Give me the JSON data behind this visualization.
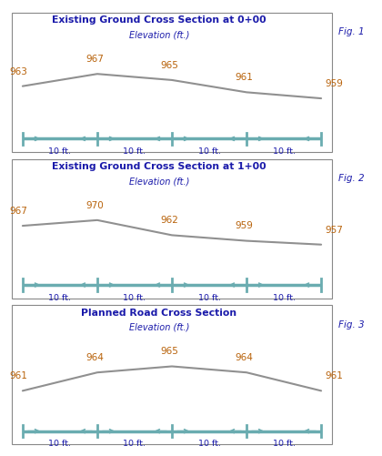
{
  "fig1": {
    "title": "Existing Ground Cross Section at 0+00",
    "subtitle": "Elevation (ft.)",
    "fig_label": "Fig. 1",
    "x": [
      0,
      10,
      20,
      30,
      40
    ],
    "y": [
      963,
      967,
      965,
      961,
      959
    ],
    "labels": [
      "963",
      "967",
      "965",
      "961",
      "959"
    ]
  },
  "fig2": {
    "title": "Existing Ground Cross Section at 1+00",
    "subtitle": "Elevation (ft.)",
    "fig_label": "Fig. 2",
    "x": [
      0,
      10,
      20,
      30,
      40
    ],
    "y": [
      967,
      970,
      962,
      959,
      957
    ],
    "labels": [
      "967",
      "970",
      "962",
      "959",
      "957"
    ]
  },
  "fig3": {
    "title": "Planned Road Cross Section",
    "subtitle": "Elevation (ft.)",
    "fig_label": "Fig. 3",
    "x": [
      0,
      10,
      20,
      30,
      40
    ],
    "y": [
      961,
      964,
      965,
      964,
      961
    ],
    "labels": [
      "961",
      "964",
      "965",
      "964",
      "961"
    ]
  },
  "line_color": "#909090",
  "label_color": "#B8620A",
  "title_color": "#1a1aaa",
  "subtitle_color": "#1a1aaa",
  "arrow_color": "#6AACB0",
  "fig_label_color": "#1a1aaa",
  "background": "#FFFFFF",
  "segment_labels": [
    "10 ft.",
    "10 ft.",
    "10 ft.",
    "10 ft."
  ],
  "segment_label_color": "#1a1aaa"
}
